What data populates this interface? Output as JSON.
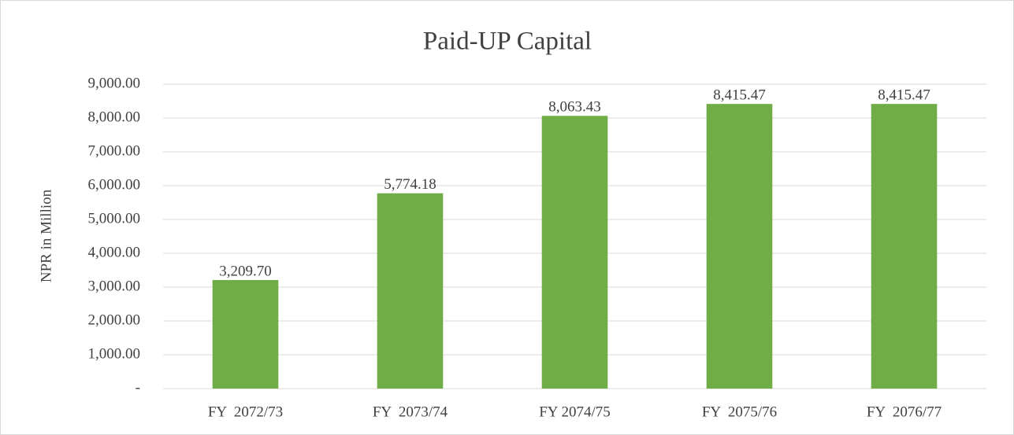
{
  "chart_data": {
    "type": "bar",
    "title": "Paid-UP Capital",
    "y_label": "NPR in Million",
    "categories": [
      "FY  2072/73",
      "FY  2073/74",
      "FY 2074/75",
      "FY  2075/76",
      "FY  2076/77"
    ],
    "values": [
      3209.7,
      5774.18,
      8063.43,
      8415.47,
      8415.47
    ],
    "value_labels": [
      "3,209.70",
      "5,774.18",
      "8,063.43",
      "8,415.47",
      "8,415.47"
    ],
    "color": "#70ad47",
    "ylim": [
      0,
      9000
    ],
    "yticks": [
      {
        "value": 0,
        "label": "-"
      },
      {
        "value": 1000,
        "label": "1,000.00"
      },
      {
        "value": 2000,
        "label": "2,000.00"
      },
      {
        "value": 3000,
        "label": "3,000.00"
      },
      {
        "value": 4000,
        "label": "4,000.00"
      },
      {
        "value": 5000,
        "label": "5,000.00"
      },
      {
        "value": 6000,
        "label": "6,000.00"
      },
      {
        "value": 7000,
        "label": "7,000.00"
      },
      {
        "value": 8000,
        "label": "8,000.00"
      },
      {
        "value": 9000,
        "label": "9,000.00"
      }
    ],
    "grid": true
  }
}
